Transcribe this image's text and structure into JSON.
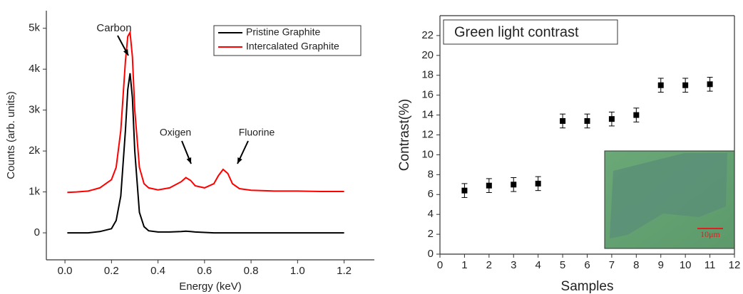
{
  "chart_data": [
    {
      "type": "line",
      "xlabel": "Energy (keV)",
      "ylabel": "Counts (arb. units)",
      "x": [
        0.01,
        0.05,
        0.1,
        0.15,
        0.2,
        0.22,
        0.24,
        0.26,
        0.27,
        0.28,
        0.29,
        0.3,
        0.32,
        0.34,
        0.36,
        0.4,
        0.45,
        0.5,
        0.52,
        0.54,
        0.56,
        0.6,
        0.64,
        0.66,
        0.68,
        0.7,
        0.72,
        0.75,
        0.8,
        0.9,
        1.0,
        1.1,
        1.2
      ],
      "series": [
        {
          "name": "Pristine Graphite",
          "color": "#000000",
          "values": [
            0,
            0,
            0,
            30,
            100,
            300,
            900,
            2500,
            3500,
            3900,
            3300,
            2000,
            500,
            150,
            50,
            20,
            20,
            30,
            40,
            30,
            20,
            10,
            0,
            0,
            0,
            0,
            0,
            0,
            0,
            0,
            0,
            0,
            0
          ]
        },
        {
          "name": "Intercalated Graphite",
          "color": "#ff0000",
          "values": [
            990,
            1000,
            1020,
            1100,
            1300,
            1600,
            2500,
            4200,
            4800,
            4900,
            4300,
            3000,
            1600,
            1200,
            1100,
            1050,
            1100,
            1250,
            1350,
            1280,
            1150,
            1100,
            1200,
            1400,
            1550,
            1450,
            1200,
            1080,
            1040,
            1020,
            1020,
            1010,
            1010
          ]
        }
      ],
      "annotations": [
        "Carbon",
        "Oxigen",
        "Fluorine"
      ],
      "xlim": [
        -0.08,
        1.33
      ],
      "xticks": [
        {
          "value": 0,
          "label": "0.0"
        },
        0.2,
        0.4,
        0.6,
        0.8,
        {
          "value": 1,
          "label": "1.0"
        },
        1.2
      ],
      "ylim": [
        -660,
        5430
      ],
      "yticks": [
        0,
        {
          "value": 1000,
          "label": "1k"
        },
        {
          "value": 2000,
          "label": "2k"
        },
        {
          "value": 3000,
          "label": "3k"
        },
        {
          "value": 4000,
          "label": "4k"
        },
        {
          "value": 5000,
          "label": "5k"
        }
      ],
      "legend": "upper-right"
    },
    {
      "type": "scatter",
      "title": "Green light contrast",
      "xlabel": "Samples",
      "ylabel": "Contrast(%)",
      "x": [
        1,
        2,
        3,
        4,
        5,
        6,
        7,
        8,
        9,
        10,
        11
      ],
      "values": [
        6.4,
        6.9,
        7.0,
        7.1,
        13.4,
        13.4,
        13.6,
        14.0,
        17.0,
        17.0,
        17.1
      ],
      "errors": [
        0.7,
        0.7,
        0.7,
        0.7,
        0.7,
        0.7,
        0.7,
        0.7,
        0.7,
        0.7,
        0.7
      ],
      "color": "#000000",
      "scale_bar_label": "10μm",
      "xlim": [
        0,
        12
      ],
      "xticks": [
        0,
        1,
        2,
        3,
        4,
        5,
        6,
        7,
        8,
        9,
        10,
        11,
        12
      ],
      "ylim": [
        0,
        24
      ],
      "yticks": [
        0,
        2,
        4,
        6,
        8,
        10,
        12,
        14,
        16,
        18,
        20,
        22
      ]
    }
  ]
}
